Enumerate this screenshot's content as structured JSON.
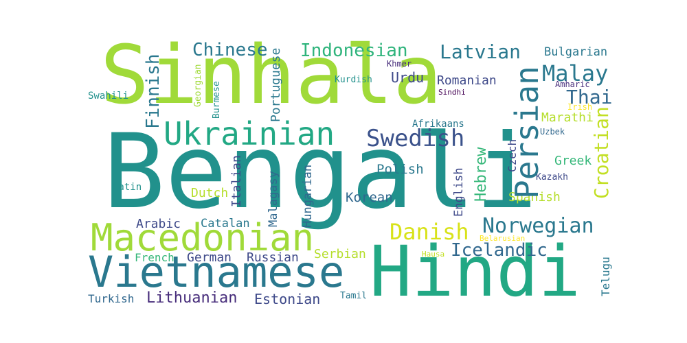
{
  "colors": {
    "background": "#ffffff",
    "palette_viridis": [
      "#440154",
      "#46327e",
      "#365c8d",
      "#277f8e",
      "#1fa187",
      "#4ac16d",
      "#a0da39",
      "#fde725"
    ]
  },
  "words": [
    {
      "text": "Bengali",
      "color": "#21918c"
    },
    {
      "text": "Sinhala",
      "color": "#a0da39"
    },
    {
      "text": "Hindi",
      "color": "#22a884"
    },
    {
      "text": "Vietnamese",
      "color": "#2a788e"
    },
    {
      "text": "Macedonian",
      "color": "#a0da39"
    },
    {
      "text": "Ukrainian",
      "color": "#22a884"
    },
    {
      "text": "Persian",
      "color": "#2a788e"
    },
    {
      "text": "Norwegian",
      "color": "#2a788e"
    },
    {
      "text": "Swedish",
      "color": "#3b528b"
    },
    {
      "text": "Danish",
      "color": "#d8e219"
    },
    {
      "text": "Icelandic",
      "color": "#31688e"
    },
    {
      "text": "Malay",
      "color": "#2a788e"
    },
    {
      "text": "Latvian",
      "color": "#2a788e"
    },
    {
      "text": "Chinese",
      "color": "#2a788e"
    },
    {
      "text": "Indonesian",
      "color": "#2fb47c"
    },
    {
      "text": "Croatian",
      "color": "#c2df23"
    },
    {
      "text": "Finnish",
      "color": "#2a788e"
    },
    {
      "text": "Thai",
      "color": "#31688e"
    },
    {
      "text": "Hebrew",
      "color": "#35b779"
    },
    {
      "text": "Lithuanian",
      "color": "#472d7b"
    },
    {
      "text": "Estonian",
      "color": "#3e4989"
    },
    {
      "text": "Polish",
      "color": "#2a788e"
    },
    {
      "text": "Portuguese",
      "color": "#2a788e"
    },
    {
      "text": "Korean",
      "color": "#31688e"
    },
    {
      "text": "Spanish",
      "color": "#b5de2b"
    },
    {
      "text": "Bulgarian",
      "color": "#2a788e"
    },
    {
      "text": "Romanian",
      "color": "#3e4989"
    },
    {
      "text": "Greek",
      "color": "#35b779"
    },
    {
      "text": "Marathi",
      "color": "#b5de2b"
    },
    {
      "text": "Urdu",
      "color": "#3e4989"
    },
    {
      "text": "Dutch",
      "color": "#b5de2b"
    },
    {
      "text": "Arabic",
      "color": "#3e4989"
    },
    {
      "text": "Catalan",
      "color": "#2a788e"
    },
    {
      "text": "Russian",
      "color": "#3e4989"
    },
    {
      "text": "German",
      "color": "#3e4989"
    },
    {
      "text": "French",
      "color": "#35b779"
    },
    {
      "text": "Serbian",
      "color": "#b5de2b"
    },
    {
      "text": "Turkish",
      "color": "#31688e"
    },
    {
      "text": "Italian",
      "color": "#3e4989"
    },
    {
      "text": "Malagasy",
      "color": "#31688e"
    },
    {
      "text": "Hungarian",
      "color": "#31688e"
    },
    {
      "text": "English",
      "color": "#3e4989"
    },
    {
      "text": "Czech",
      "color": "#3e4989"
    },
    {
      "text": "Telugu",
      "color": "#2a788e"
    },
    {
      "text": "Afrikaans",
      "color": "#2a788e"
    },
    {
      "text": "Swahili",
      "color": "#21918c"
    },
    {
      "text": "Georgian",
      "color": "#a0da39"
    },
    {
      "text": "Burmese",
      "color": "#21918c"
    },
    {
      "text": "Kurdish",
      "color": "#21918c"
    },
    {
      "text": "Khmer",
      "color": "#472d7b"
    },
    {
      "text": "Amharic",
      "color": "#472d7b"
    },
    {
      "text": "Sindhi",
      "color": "#440154"
    },
    {
      "text": "Irish",
      "color": "#fde725"
    },
    {
      "text": "Uzbek",
      "color": "#31688e"
    },
    {
      "text": "Kazakh",
      "color": "#3e4989"
    },
    {
      "text": "Latin",
      "color": "#21918c"
    },
    {
      "text": "Belarusian",
      "color": "#fde725"
    },
    {
      "text": "Hausa",
      "color": "#c2df23"
    },
    {
      "text": "Tamil",
      "color": "#2a788e"
    }
  ]
}
